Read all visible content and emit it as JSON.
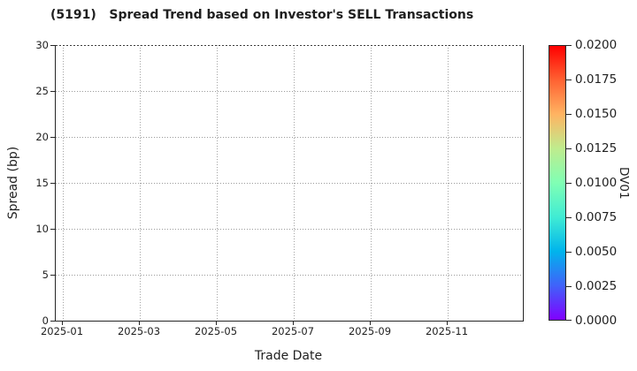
{
  "chart_data": {
    "type": "scatter",
    "title": "(5191)   Spread Trend based on Investor's SELL Transactions",
    "xlabel": "Trade Date",
    "ylabel": "Spread (bp)",
    "ylim": [
      0,
      30
    ],
    "y_ticks": [
      0,
      5,
      10,
      15,
      20,
      25,
      30
    ],
    "x_ticks": [
      {
        "label": "2025-01",
        "pos": 0.015
      },
      {
        "label": "2025-03",
        "pos": 0.18
      },
      {
        "label": "2025-05",
        "pos": 0.345
      },
      {
        "label": "2025-07",
        "pos": 0.509
      },
      {
        "label": "2025-09",
        "pos": 0.674
      },
      {
        "label": "2025-11",
        "pos": 0.839
      }
    ],
    "grid": "dotted",
    "legend": "none",
    "series": [],
    "points": [],
    "colorbar": {
      "label": "DV01",
      "range": [
        0.0,
        0.02
      ],
      "ticks": [
        "0.0000",
        "0.0025",
        "0.0050",
        "0.0075",
        "0.0100",
        "0.0125",
        "0.0150",
        "0.0175",
        "0.0200"
      ],
      "colormap": "rainbow",
      "gradient_stops": [
        {
          "pos": 0.0,
          "color": "#8000ff"
        },
        {
          "pos": 0.125,
          "color": "#4062fa"
        },
        {
          "pos": 0.25,
          "color": "#00b4ec"
        },
        {
          "pos": 0.375,
          "color": "#40ecd4"
        },
        {
          "pos": 0.5,
          "color": "#80ffb4"
        },
        {
          "pos": 0.625,
          "color": "#bfec8e"
        },
        {
          "pos": 0.75,
          "color": "#ffb462"
        },
        {
          "pos": 0.875,
          "color": "#ff6232"
        },
        {
          "pos": 1.0,
          "color": "#ff0000"
        }
      ]
    },
    "colors": {
      "background": "#ffffff",
      "spine": "#262626",
      "grid": "#9b9b9b",
      "text": "#1f1f1f"
    }
  }
}
